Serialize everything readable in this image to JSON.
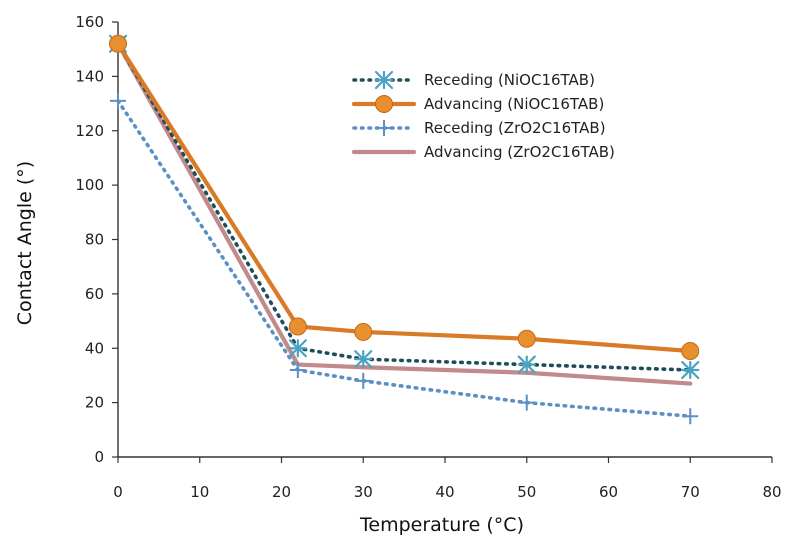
{
  "chart_data": {
    "type": "line",
    "xlabel": "Temperature (°C)",
    "ylabel": "Contact Angle (°)",
    "xlim": [
      0,
      80
    ],
    "ylim": [
      0,
      160
    ],
    "xticks": [
      "0",
      "10",
      "20",
      "30",
      "40",
      "50",
      "60",
      "70",
      "80"
    ],
    "yticks": [
      "0",
      "20",
      "40",
      "60",
      "80",
      "100",
      "120",
      "140",
      "160"
    ],
    "grid": false,
    "legend_position": "top-right",
    "x": [
      0,
      22,
      30,
      50,
      70
    ],
    "series": [
      {
        "name": "Receding (NiOC16TAB)",
        "values": [
          152,
          40,
          36,
          34,
          32
        ],
        "color": "#1f4e5a",
        "line_style": "dotted",
        "marker": "asterisk",
        "marker_color": "#4aa3c2"
      },
      {
        "name": "Advancing (NiOC16TAB)",
        "values": [
          152,
          48,
          46,
          43.5,
          39
        ],
        "color": "#d97b26",
        "line_style": "solid",
        "marker": "circle",
        "marker_color": "#e8902f"
      },
      {
        "name": "Receding (ZrO2C16TAB)",
        "values": [
          131,
          32,
          28,
          20,
          15
        ],
        "color": "#5c8fc4",
        "line_style": "dotted",
        "marker": "plus",
        "marker_color": "#5c8fc4"
      },
      {
        "name": "Advancing (ZrO2C16TAB)",
        "values": [
          152,
          34,
          33,
          31,
          27
        ],
        "color": "#c28a8a",
        "line_style": "solid",
        "marker": "none",
        "marker_color": "#c28a8a"
      }
    ]
  }
}
